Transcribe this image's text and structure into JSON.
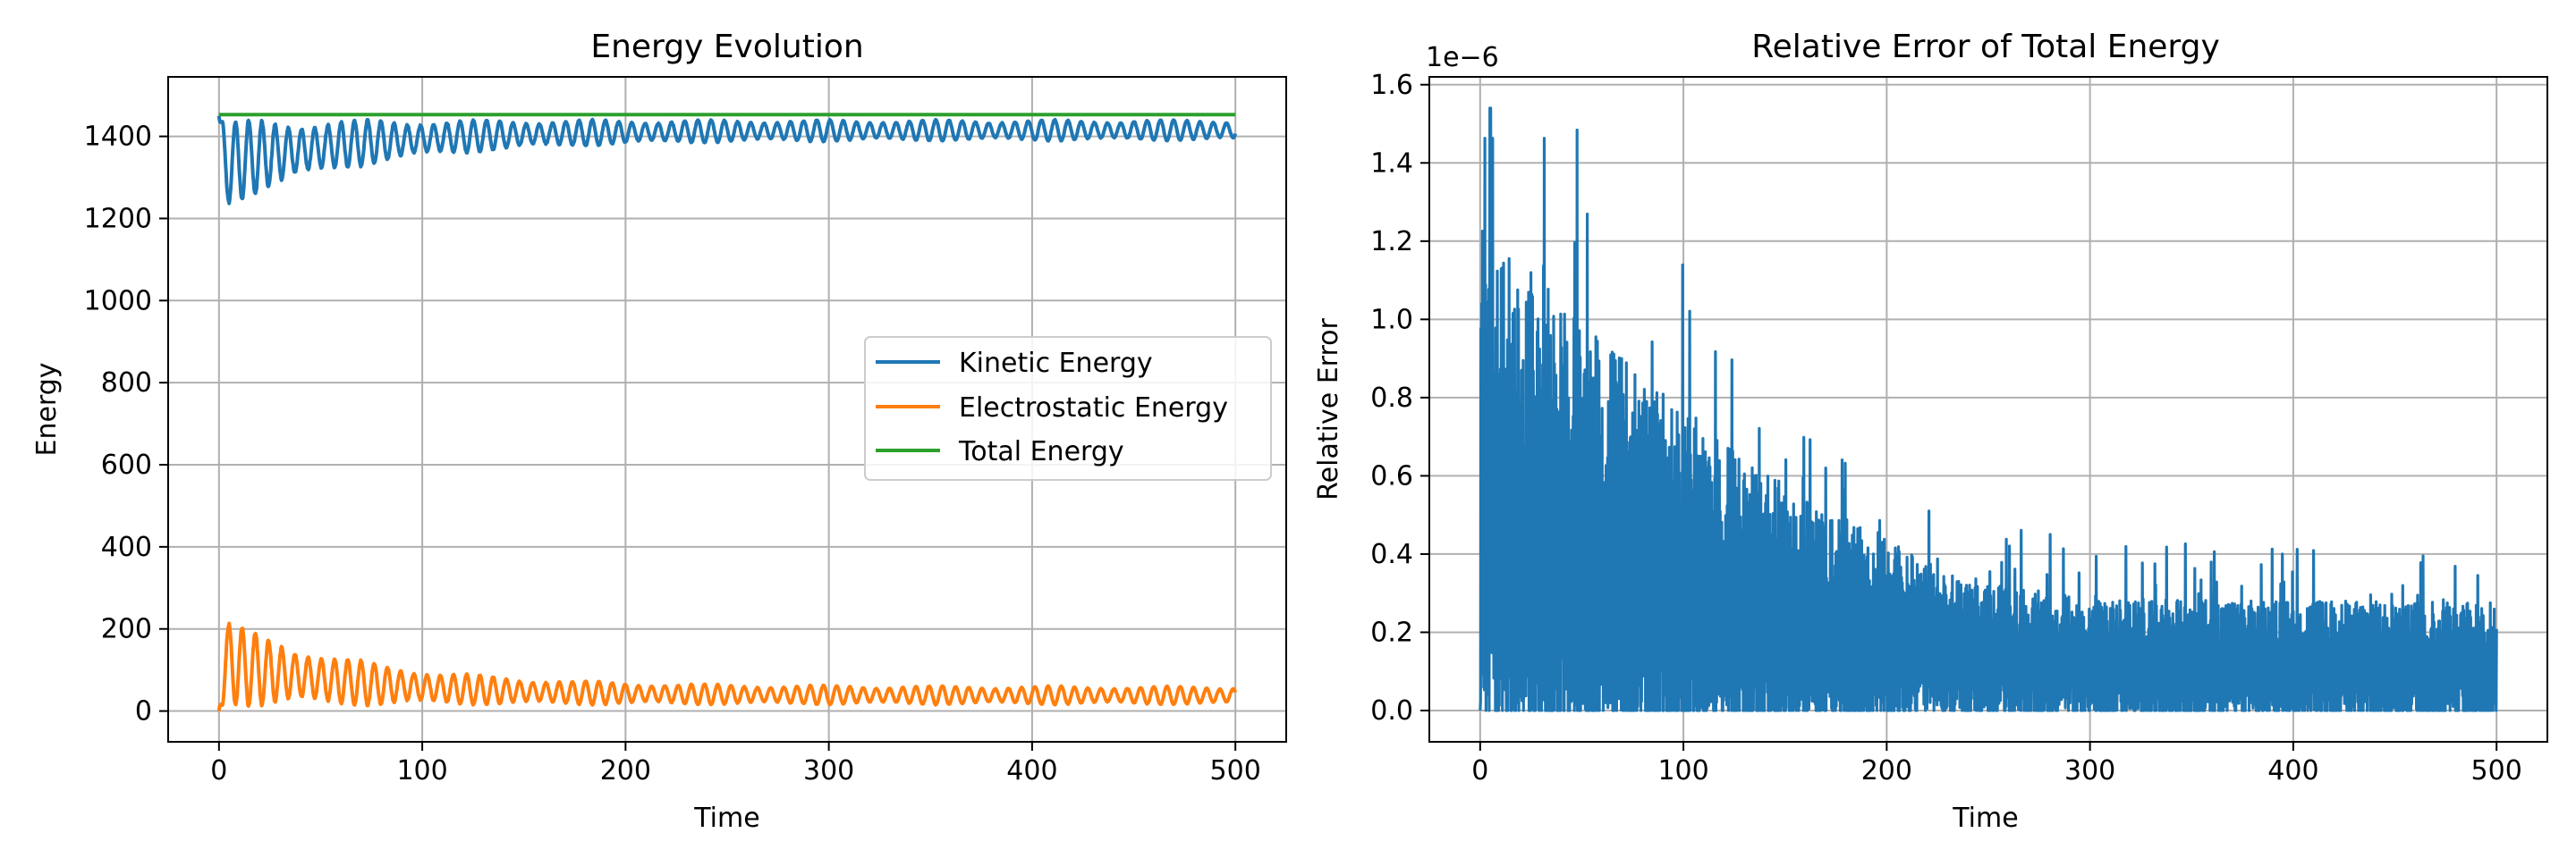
{
  "colors": {
    "kinetic": "#1f77b4",
    "electrostatic": "#ff7f0e",
    "total": "#2ca02c",
    "error": "#1f77b4",
    "grid": "#b0b0b0",
    "axes": "#000000"
  },
  "chart_data": [
    {
      "type": "line",
      "title": "Energy Evolution",
      "xlabel": "Time",
      "ylabel": "Energy",
      "xlim": [
        -25,
        525
      ],
      "ylim": [
        -75,
        1545
      ],
      "xticks": [
        0,
        100,
        200,
        300,
        400,
        500
      ],
      "yticks": [
        0,
        200,
        400,
        600,
        800,
        1000,
        1200,
        1400
      ],
      "xtick_labels": [
        "0",
        "100",
        "200",
        "300",
        "400",
        "500"
      ],
      "ytick_labels": [
        "0",
        "200",
        "400",
        "600",
        "800",
        "1000",
        "1200",
        "1400"
      ],
      "grid": true,
      "legend_position": "center-right",
      "legend": [
        "Kinetic Energy",
        "Electrostatic Energy",
        "Total Energy"
      ],
      "series": [
        {
          "name": "Kinetic Energy",
          "description": "starts at ~1450, drops quickly and oscillates between ~1220 and ~1440, amplitude damping to ~1390-1440 after t~200",
          "start": 1450,
          "mean_early": 1330,
          "mean_late": 1415,
          "amp_early": 110,
          "amp_late": 25,
          "oscillation_period": 6.5,
          "t_end": 500
        },
        {
          "name": "Electrostatic Energy",
          "description": "starts near 0, oscillates between ~10 and ~230 early, damping to ~20-60 after t~200",
          "start": 0,
          "mean_early": 120,
          "mean_late": 38,
          "amp_early": 110,
          "amp_late": 22,
          "oscillation_period": 6.5,
          "t_end": 500
        },
        {
          "name": "Total Energy",
          "description": "constant ~1453",
          "x": [
            0,
            500
          ],
          "values": [
            1453,
            1453
          ]
        }
      ]
    },
    {
      "type": "line",
      "title": "Relative Error of Total Energy",
      "xlabel": "Time",
      "ylabel": "Relative Error",
      "offset_text": "1e−6",
      "scale": 1e-06,
      "xlim": [
        -25,
        525
      ],
      "ylim": [
        -0.08,
        1.62
      ],
      "xticks": [
        0,
        100,
        200,
        300,
        400,
        500
      ],
      "yticks": [
        0.0,
        0.2,
        0.4,
        0.6,
        0.8,
        1.0,
        1.2,
        1.4,
        1.6
      ],
      "xtick_labels": [
        "0",
        "100",
        "200",
        "300",
        "400",
        "500"
      ],
      "ytick_labels": [
        "0.0",
        "0.2",
        "0.4",
        "0.6",
        "0.8",
        "1.0",
        "1.2",
        "1.4",
        "1.6"
      ],
      "grid": true,
      "series": [
        {
          "name": "Relative Error",
          "description": "dense spiky signal; peak ~1.54e-6 near t~5, envelope decaying from ~1.3e-6 to ~0.5e-6 by t~200, then ~0.2-0.45e-6 until t=500, minimum 0",
          "peak": 1.54,
          "peak_t": 5,
          "envelope_start": 1.25,
          "envelope_t200": 0.45,
          "envelope_end": 0.28,
          "t_end": 500
        }
      ]
    }
  ]
}
